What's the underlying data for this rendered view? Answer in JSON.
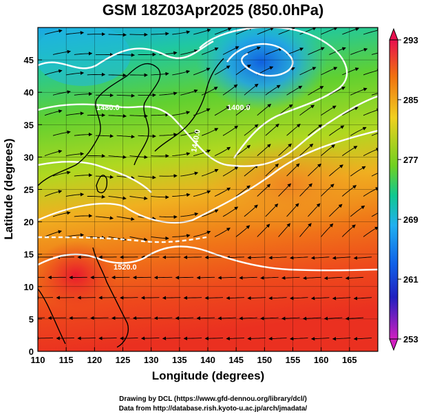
{
  "title": "GSM 18Z03Apr2025 (850.0hPa)",
  "xlabel": "Longitude (degrees)",
  "ylabel": "Latitude  (degrees)",
  "credits": [
    "Drawing by DCL (https://www.gfd-dennou.org/library/dcl/)",
    "Data from http://database.rish.kyoto-u.ac.jp/arch/jmadata/"
  ],
  "map": {
    "lon_range": [
      110,
      170
    ],
    "lat_range": [
      0,
      50
    ],
    "x_ticks": [
      "110",
      "115",
      "120",
      "125",
      "130",
      "135",
      "140",
      "145",
      "150",
      "155",
      "160",
      "165"
    ],
    "y_ticks": [
      "0",
      "5",
      "10",
      "15",
      "20",
      "25",
      "30",
      "35",
      "40",
      "45"
    ],
    "grid": true,
    "field": "temperature",
    "overlay": "wind streamlines (black) and geopotential height contours (white)",
    "contour_labels": [
      "1480.0",
      "1400.0",
      "1440.0",
      "1520.0"
    ]
  },
  "colorbar": {
    "min": 253,
    "max": 293,
    "tick_labels": [
      "293",
      "285",
      "277",
      "269",
      "261",
      "253"
    ],
    "colors": [
      "#e8104e",
      "#f07010",
      "#f0d020",
      "#70d020",
      "#10c890",
      "#20b0f0",
      "#1060e8",
      "#2020c0",
      "#c020c0"
    ]
  }
}
